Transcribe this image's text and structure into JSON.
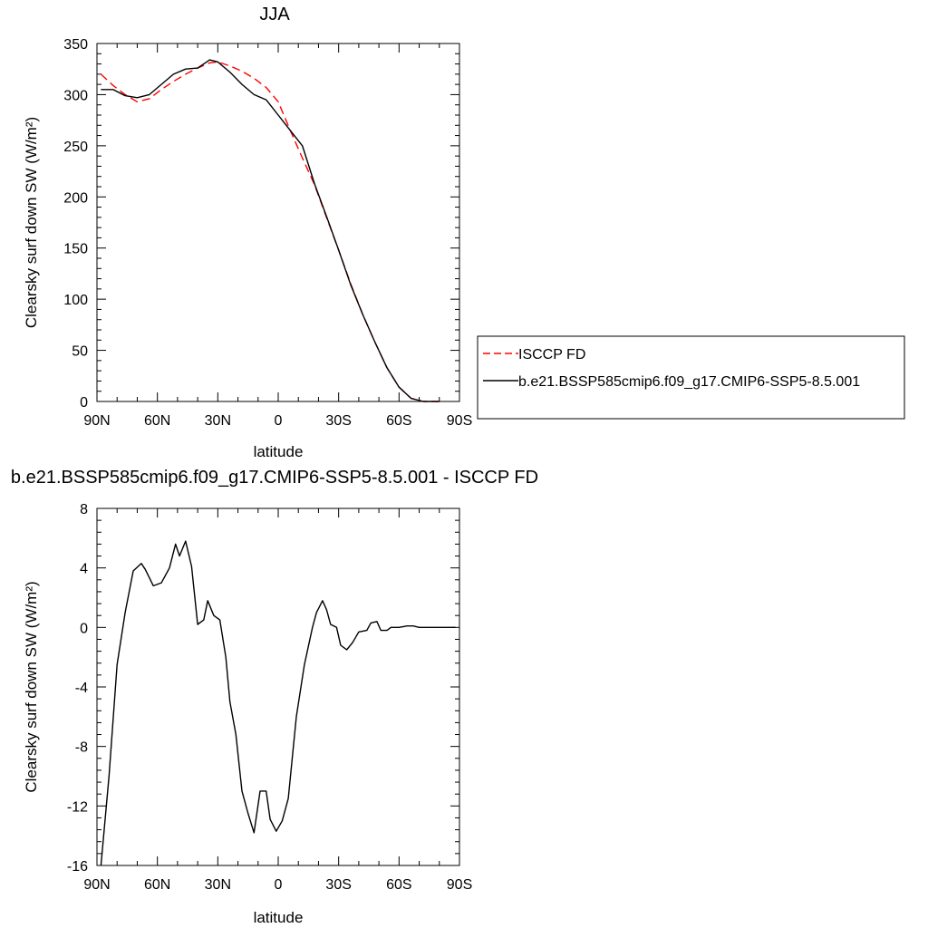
{
  "chart_data": [
    {
      "type": "line",
      "title": "JJA",
      "xlabel": "latitude",
      "ylabel": "Clearsky surf down SW (W/m²)",
      "xlim": [
        90,
        -90
      ],
      "ylim": [
        0,
        350
      ],
      "x_ticks": [
        90,
        60,
        30,
        0,
        -30,
        -60,
        -90
      ],
      "x_tick_labels": [
        "90N",
        "60N",
        "30N",
        "0",
        "30S",
        "60S",
        "90S"
      ],
      "y_ticks": [
        0,
        50,
        100,
        150,
        200,
        250,
        300,
        350
      ],
      "y_tick_labels": [
        "0",
        "50",
        "100",
        "150",
        "200",
        "250",
        "300",
        "350"
      ],
      "legend_position": "right",
      "series": [
        {
          "name": "ISCCP FD",
          "color": "#ff0000",
          "style": "dashed",
          "x": [
            88,
            82,
            76,
            70,
            64,
            58,
            52,
            46,
            40,
            34,
            30,
            24,
            18,
            12,
            6,
            0,
            -6,
            -12,
            -18,
            -24,
            -30,
            -36,
            -42,
            -48,
            -54,
            -60,
            -66,
            -72,
            -78,
            -80
          ],
          "y": [
            320,
            309,
            300,
            293,
            296,
            305,
            313,
            320,
            326,
            331,
            332,
            328,
            323,
            316,
            307,
            293,
            265,
            238,
            212,
            180,
            148,
            115,
            85,
            58,
            33,
            14,
            3,
            0,
            0,
            0
          ]
        },
        {
          "name": "b.e21.BSSP585cmip6.f09_g17.CMIP6-SSP5-8.5.001",
          "color": "#000000",
          "style": "solid",
          "x": [
            88,
            82,
            76,
            70,
            64,
            58,
            52,
            46,
            40,
            34,
            30,
            24,
            18,
            12,
            6,
            0,
            -6,
            -12,
            -18,
            -24,
            -30,
            -36,
            -42,
            -48,
            -54,
            -60,
            -66,
            -72,
            -78,
            -80
          ],
          "y": [
            305,
            305,
            299,
            297,
            300,
            310,
            320,
            325,
            326,
            334,
            332,
            322,
            310,
            300,
            295,
            280,
            265,
            250,
            213,
            181,
            148,
            114,
            85,
            58,
            33,
            14,
            3,
            0,
            0,
            0
          ]
        }
      ]
    },
    {
      "type": "line",
      "title": "b.e21.BSSP585cmip6.f09_g17.CMIP6-SSP5-8.5.001 - ISCCP FD",
      "xlabel": "latitude",
      "ylabel": "Clearsky surf down SW (W/m²)",
      "xlim": [
        90,
        -90
      ],
      "ylim": [
        -16,
        8
      ],
      "x_ticks": [
        90,
        60,
        30,
        0,
        -30,
        -60,
        -90
      ],
      "x_tick_labels": [
        "90N",
        "60N",
        "30N",
        "0",
        "30S",
        "60S",
        "90S"
      ],
      "y_ticks": [
        -16,
        -12,
        -8,
        -4,
        0,
        4,
        8
      ],
      "y_tick_labels": [
        "-16",
        "-12",
        "-8",
        "-4",
        "0",
        "4",
        "8"
      ],
      "series": [
        {
          "color": "#000000",
          "style": "solid",
          "x": [
            88,
            84,
            80,
            76,
            72,
            68,
            66,
            62,
            58,
            54,
            51,
            49,
            46,
            43,
            40,
            37,
            35,
            32,
            29,
            26,
            24,
            21,
            18,
            15,
            12,
            9,
            6,
            4,
            1,
            -2,
            -5,
            -9,
            -13,
            -17,
            -19,
            -22,
            -24,
            -26,
            -29,
            -31,
            -34,
            -37,
            -40,
            -44,
            -46,
            -49,
            -51,
            -54,
            -56,
            -60,
            -64,
            -67,
            -70,
            -74,
            -78,
            -82,
            -86,
            -88
          ],
          "y": [
            -16,
            -10,
            -2.5,
            1.0,
            3.8,
            4.3,
            3.9,
            2.8,
            3.0,
            4.0,
            5.6,
            4.8,
            5.8,
            4.1,
            0.2,
            0.5,
            1.8,
            0.8,
            0.5,
            -2.0,
            -5.0,
            -7.2,
            -11.0,
            -12.5,
            -13.8,
            -11.0,
            -11.0,
            -12.9,
            -13.7,
            -13.0,
            -11.5,
            -6.0,
            -2.5,
            0.0,
            1.0,
            1.8,
            1.2,
            0.2,
            0.0,
            -1.2,
            -1.5,
            -1.0,
            -0.3,
            -0.2,
            0.3,
            0.4,
            -0.2,
            -0.2,
            0.0,
            0.0,
            0.1,
            0.1,
            0.0,
            0.0,
            0.0,
            0.0,
            0.0,
            0.0
          ]
        }
      ]
    }
  ]
}
